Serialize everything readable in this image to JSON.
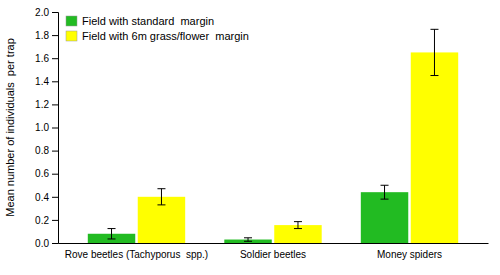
{
  "chart_data": {
    "type": "bar",
    "ylabel": "Mean number of individuals  per trap",
    "categories": [
      "Rove beetles (Tachyporus  spp.)",
      "Soldier beetles",
      "Money spiders"
    ],
    "series": [
      {
        "name": "Field with standard  margin",
        "color": "#22bb22",
        "values": [
          0.08,
          0.03,
          0.44
        ],
        "errors": [
          0.045,
          0.015,
          0.06
        ]
      },
      {
        "name": "Field with 6m grass/flower  margin",
        "color": "#ffff00",
        "values": [
          0.4,
          0.155,
          1.65
        ],
        "errors": [
          0.07,
          0.03,
          0.2
        ]
      }
    ],
    "ylim": [
      0,
      2.0
    ],
    "yticks": [
      {
        "value": 0,
        "label": "0.0"
      },
      0.2,
      0.4,
      0.6,
      0.8,
      {
        "value": 1.0,
        "label": "1.0"
      },
      1.2,
      1.4,
      1.6,
      1.8,
      {
        "value": 2.0,
        "label": "2.0"
      }
    ],
    "grid": false,
    "legend": "upper left"
  }
}
